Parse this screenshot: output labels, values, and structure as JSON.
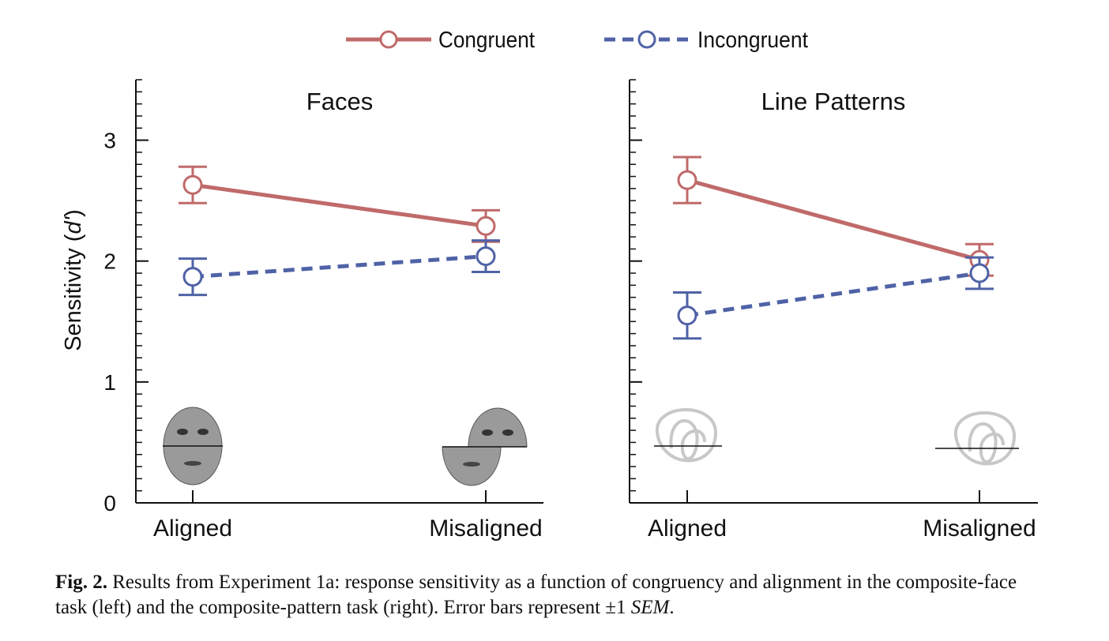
{
  "legend": {
    "items": [
      {
        "label": "Congruent",
        "color": "#c06a6a",
        "dash": false
      },
      {
        "label": "Incongruent",
        "color": "#4f62a6",
        "dash": true
      }
    ]
  },
  "chart_data": [
    {
      "type": "line",
      "title": "Faces",
      "ylabel_main": "Sensitivity (",
      "ylabel_italic": "d'",
      "ylabel_end": ")",
      "categories": [
        "Aligned",
        "Misaligned"
      ],
      "ylim": [
        0,
        3.5
      ],
      "yticks": [
        "0",
        "1",
        "2",
        "3"
      ],
      "series": [
        {
          "name": "Congruent",
          "values": [
            2.63,
            2.29
          ],
          "err": [
            0.15,
            0.13
          ],
          "color": "#c06a6a"
        },
        {
          "name": "Incongruent",
          "values": [
            1.87,
            2.04
          ],
          "err": [
            0.15,
            0.13
          ],
          "color": "#4f62a6"
        }
      ],
      "stimulus": "face"
    },
    {
      "type": "line",
      "title": "Line Patterns",
      "categories": [
        "Aligned",
        "Misaligned"
      ],
      "ylim": [
        0,
        3.5
      ],
      "series": [
        {
          "name": "Congruent",
          "values": [
            2.67,
            2.01
          ],
          "err": [
            0.19,
            0.13
          ],
          "color": "#c06a6a"
        },
        {
          "name": "Incongruent",
          "values": [
            1.55,
            1.9
          ],
          "err": [
            0.19,
            0.13
          ],
          "color": "#4f62a6"
        }
      ],
      "stimulus": "pattern"
    }
  ],
  "caption": {
    "label": "Fig. 2.",
    "text": " Results from Experiment 1a: response sensitivity as a function of congruency and alignment in the composite-face task (left) and the composite-pattern task (right). Error bars represent ±1 ",
    "sem": "SEM",
    "end": "."
  }
}
